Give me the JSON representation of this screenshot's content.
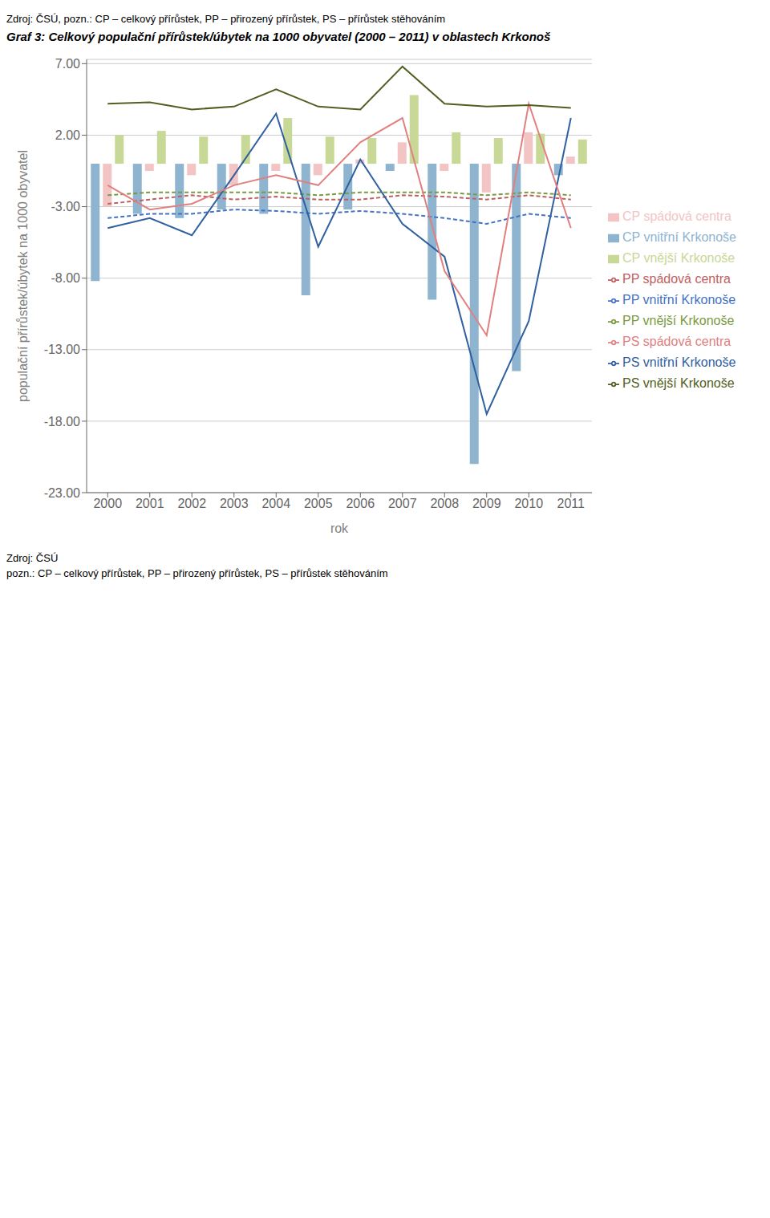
{
  "chart_data": {
    "type": "bar",
    "title": "Graf 3: Celkový populační přírůstek/úbytek na 1000 obyvatel (2000 – 2011) v oblastech Krkonoš",
    "subtitle": "Zdroj: ČSÚ, pozn.: CP – celkový přírůstek, PP – přirozený přírůstek, PS – přírůstek stěhováním",
    "x_label": "rok",
    "y_label": "populační přírůstek/úbytek na 1000 obyvatel",
    "categories": [
      2000,
      2001,
      2002,
      2003,
      2004,
      2005,
      2006,
      2007,
      2008,
      2009,
      2010,
      2011
    ],
    "ylim": [
      -23,
      7.3
    ],
    "yticks": [
      {
        "value": 7,
        "label": "7.00"
      },
      {
        "value": 2,
        "label": "2.00"
      },
      {
        "value": -3,
        "label": "-3.00"
      },
      {
        "value": -8,
        "label": "-8.00"
      },
      {
        "value": -13,
        "label": "-13.00"
      },
      {
        "value": -18,
        "label": "-18.00"
      },
      {
        "value": -23,
        "label": "-23.00"
      }
    ],
    "grid": true,
    "legend": "right",
    "series": [
      {
        "name": "CP vnitřní Krkonoše",
        "type": "bar",
        "color": "#8eb4d0",
        "values": [
          -8.2,
          -3.5,
          -3.8,
          -3.2,
          -3.5,
          -9.2,
          -3.2,
          -0.5,
          -9.5,
          -21.0,
          -14.5,
          -0.8
        ]
      },
      {
        "name": "CP spádová centra",
        "type": "bar",
        "color": "#f2c4c4",
        "values": [
          -3.0,
          -0.5,
          -0.8,
          -1.5,
          -0.5,
          -0.8,
          0.3,
          1.5,
          -0.5,
          -2.0,
          2.2,
          0.5
        ]
      },
      {
        "name": "CP vnější Krkonoše",
        "type": "bar",
        "color": "#c8d896",
        "values": [
          2.0,
          2.3,
          1.9,
          2.0,
          3.2,
          1.9,
          1.8,
          4.8,
          2.2,
          1.8,
          2.1,
          1.7
        ]
      },
      {
        "name": "PP vnitřní Krkonoše",
        "type": "line",
        "line_style": "dashed",
        "marker": "none",
        "color": "#4472c4",
        "values": [
          -3.8,
          -3.5,
          -3.5,
          -3.2,
          -3.3,
          -3.5,
          -3.3,
          -3.5,
          -3.8,
          -4.2,
          -3.5,
          -3.8
        ]
      },
      {
        "name": "PP spádová centra",
        "type": "line",
        "line_style": "dashed",
        "marker": "none",
        "color": "#c06060",
        "values": [
          -2.8,
          -2.5,
          -2.2,
          -2.5,
          -2.3,
          -2.5,
          -2.5,
          -2.2,
          -2.3,
          -2.5,
          -2.2,
          -2.5
        ]
      },
      {
        "name": "PP vnější Krkonoše",
        "type": "line",
        "line_style": "dashed",
        "marker": "none",
        "color": "#7a9a40",
        "values": [
          -2.2,
          -2.0,
          -2.0,
          -2.0,
          -2.0,
          -2.2,
          -2.0,
          -2.0,
          -2.0,
          -2.2,
          -2.0,
          -2.2
        ]
      },
      {
        "name": "PS vnitřní Krkonoše",
        "type": "line",
        "line_style": "solid",
        "marker": "none",
        "color": "#3060a0",
        "values": [
          -4.5,
          -3.8,
          -5.0,
          -0.8,
          3.5,
          -5.8,
          0.3,
          -4.2,
          -6.5,
          -17.5,
          -11.0,
          3.2
        ]
      },
      {
        "name": "PS spádová centra",
        "type": "line",
        "line_style": "solid",
        "marker": "none",
        "color": "#e08080",
        "values": [
          -1.5,
          -3.2,
          -2.8,
          -1.5,
          -0.8,
          -1.5,
          1.5,
          3.2,
          -7.5,
          -12.0,
          4.2,
          -4.5
        ]
      },
      {
        "name": "PS vnější Krkonoše",
        "type": "line",
        "line_style": "solid",
        "marker": "none",
        "color": "#506020",
        "values": [
          4.2,
          4.3,
          3.8,
          4.0,
          5.2,
          4.0,
          3.8,
          6.8,
          4.2,
          4.0,
          4.1,
          3.9
        ]
      }
    ],
    "annotations": [
      "Zdroj: ČSÚ",
      "pozn.: CP – celkový přírůstek, PP – přirozený přírůstek, PS – přírůstek stěhováním"
    ]
  }
}
